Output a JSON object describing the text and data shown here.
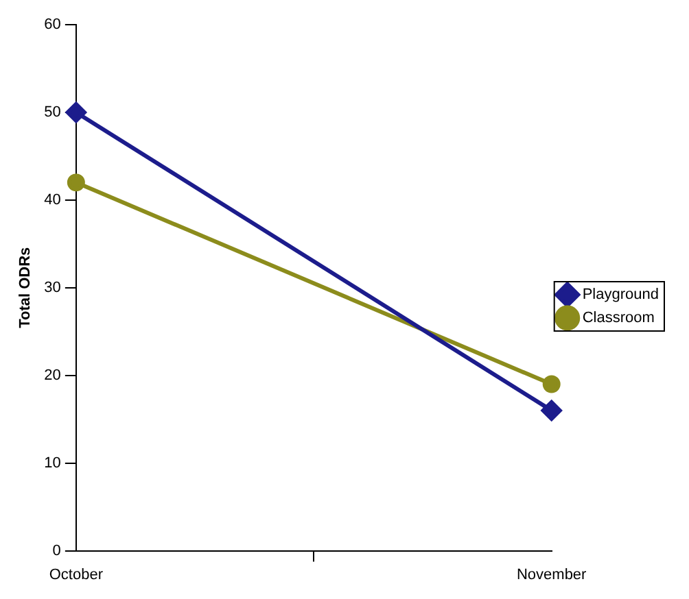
{
  "chart_data": {
    "type": "line",
    "ylabel": "Total ODRs",
    "categories": [
      "October",
      "November"
    ],
    "series": [
      {
        "name": "Playground",
        "color": "#1c1c8c",
        "values": [
          50,
          16
        ],
        "marker": "diamond"
      },
      {
        "name": "Classroom",
        "color": "#8c8c1c",
        "values": [
          42,
          19
        ],
        "marker": "circle"
      }
    ],
    "ylim": [
      0,
      60
    ],
    "yticks": [
      0,
      10,
      20,
      30,
      40,
      50,
      60
    ],
    "grid": false,
    "legend": "right"
  }
}
